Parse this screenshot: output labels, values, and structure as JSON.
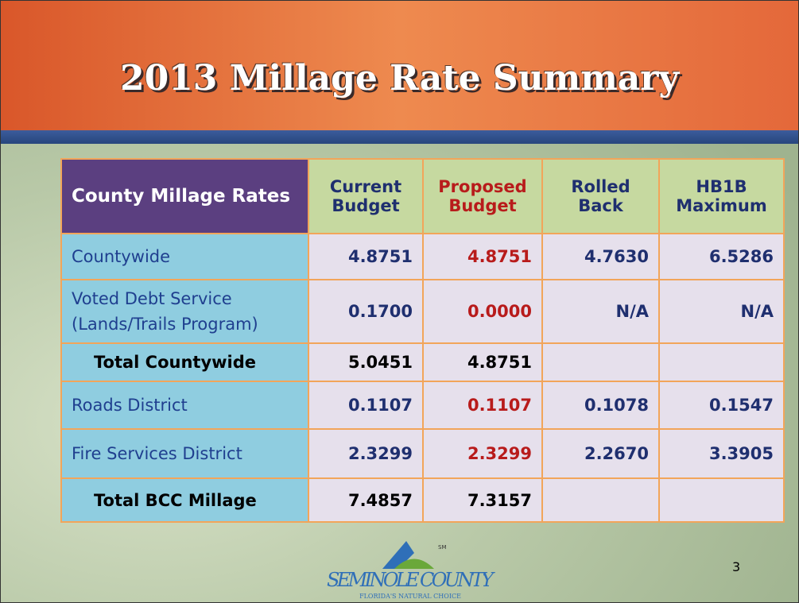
{
  "header": {
    "title": "2013 Millage Rate Summary"
  },
  "table": {
    "columns": [
      "County Millage Rates",
      "Current Budget",
      "Proposed Budget",
      "Rolled Back",
      "HB1B Maximum"
    ],
    "rows": [
      [
        "Countywide",
        "4.8751",
        "4.8751",
        "4.7630",
        "6.5286"
      ],
      [
        "Voted Debt Service (Lands/Trails Program)",
        "0.1700",
        "0.0000",
        "N/A",
        "N/A"
      ],
      [
        "Total Countywide",
        "5.0451",
        "4.8751",
        null,
        null
      ],
      [
        "Roads District",
        "0.1107",
        "0.1107",
        "0.1078",
        "0.1547"
      ],
      [
        "Fire Services District",
        "2.3299",
        "2.3299",
        "2.2670",
        "3.3905"
      ],
      [
        "Total BCC Millage",
        "7.4857",
        "7.3157",
        null,
        null
      ]
    ]
  },
  "footer": {
    "logo_name": "SEMINOLE COUNTY",
    "logo_tagline": "FLORIDA'S NATURAL CHOICE",
    "logo_mark": "SM",
    "page_number": "3"
  }
}
